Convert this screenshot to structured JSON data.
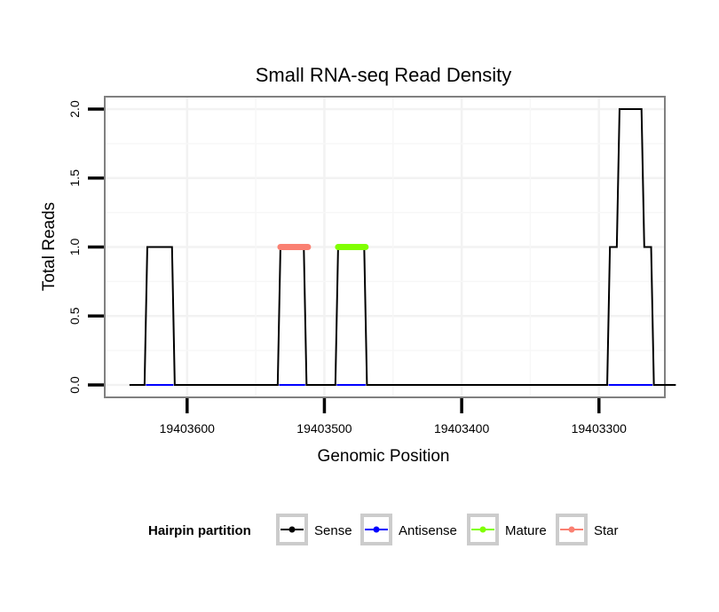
{
  "chart_data": {
    "type": "line",
    "title": "Small RNA-seq Read Density",
    "xlabel": "Genomic Position",
    "ylabel": "Total Reads",
    "xlim": [
      19403660,
      19403252
    ],
    "ylim": [
      -0.09,
      2.09
    ],
    "x_ticks": [
      19403600,
      19403500,
      19403400,
      19403300
    ],
    "x_tick_labels": [
      "19403600",
      "19403500",
      "19403400",
      "19403300"
    ],
    "y_ticks": [
      0,
      0.5,
      1,
      1.5,
      2
    ],
    "y_tick_labels": [
      "0.0",
      "0.5",
      "1.0",
      "1.5",
      "2.0"
    ],
    "grid": true,
    "legend_title": "Hairpin partition",
    "legend_position": "bottom",
    "series": [
      {
        "name": "Sense",
        "color": "#000000",
        "x": [
          19403642,
          19403631,
          19403629,
          19403611,
          19403609,
          19403534,
          19403532,
          19403515,
          19403513,
          19403492,
          19403490,
          19403471,
          19403469,
          19403294,
          19403292,
          19403287,
          19403285,
          19403269,
          19403267,
          19403262,
          19403260,
          19403244
        ],
        "values": [
          0,
          0,
          1,
          1,
          0,
          0,
          1,
          1,
          0,
          0,
          1,
          1,
          0,
          0,
          1,
          1,
          2,
          2,
          1,
          1,
          0,
          0
        ]
      },
      {
        "name": "Antisense",
        "color": "#0000ff",
        "segments": [
          [
            19403630,
            19403610
          ],
          [
            19403533,
            19403514
          ],
          [
            19403491,
            19403470
          ],
          [
            19403293,
            19403261
          ]
        ],
        "values": [
          0,
          0,
          0,
          0
        ]
      },
      {
        "name": "Mature",
        "color": "#80ff00",
        "segments": [
          [
            19403490,
            19403470
          ]
        ],
        "values": [
          1
        ]
      },
      {
        "name": "Star",
        "color": "#fa8072",
        "segments": [
          [
            19403532,
            19403512
          ]
        ],
        "values": [
          1
        ]
      }
    ]
  }
}
